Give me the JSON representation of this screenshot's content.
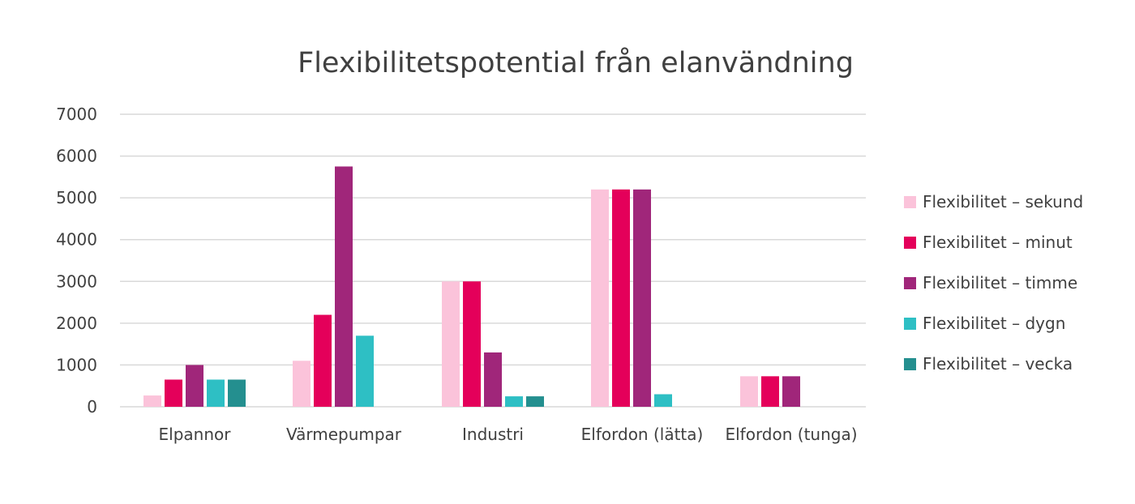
{
  "chart_data": {
    "type": "bar",
    "title": "Flexibilitetspotential från elanvändning",
    "xlabel": "",
    "ylabel": "",
    "ylim": [
      0,
      7000
    ],
    "yticks": [
      "0",
      "1000",
      "2000",
      "3000",
      "4000",
      "5000",
      "6000",
      "7000"
    ],
    "grid": true,
    "legend_position": "right",
    "categories": [
      "Elpannor",
      "Värmepumpar",
      "Industri",
      "Elfordon (lätta)",
      "Elfordon (tunga)"
    ],
    "series": [
      {
        "name": "Flexibilitet – sekund",
        "color": "#FBC3DA",
        "values": [
          270,
          1100,
          3000,
          5200,
          730
        ]
      },
      {
        "name": "Flexibilitet – minut",
        "color": "#E4005A",
        "values": [
          650,
          2200,
          3000,
          5200,
          730
        ]
      },
      {
        "name": "Flexibilitet – timme",
        "color": "#A0267A",
        "values": [
          1000,
          5750,
          1300,
          5200,
          730
        ]
      },
      {
        "name": "Flexibilitet – dygn",
        "color": "#2EBFC4",
        "values": [
          650,
          1700,
          250,
          300,
          0
        ]
      },
      {
        "name": "Flexibilitet – vecka",
        "color": "#248F8F",
        "values": [
          650,
          0,
          250,
          0,
          0
        ]
      }
    ]
  }
}
